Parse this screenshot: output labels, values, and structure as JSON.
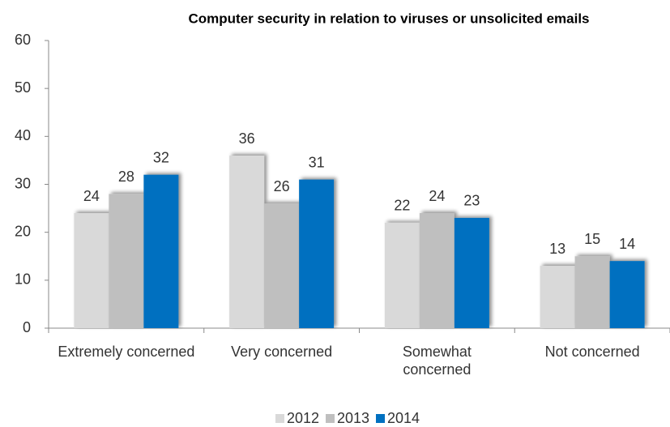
{
  "chart_data": {
    "type": "bar",
    "title": "Computer security in relation to viruses or unsolicited emails",
    "categories": [
      "Extremely concerned",
      "Very concerned",
      "Somewhat concerned",
      "Not concerned"
    ],
    "series": [
      {
        "name": "2012",
        "color": "#d9d9d9",
        "values": [
          24,
          36,
          22,
          13
        ]
      },
      {
        "name": "2013",
        "color": "#bfbfbf",
        "values": [
          28,
          26,
          24,
          15
        ]
      },
      {
        "name": "2014",
        "color": "#0070c0",
        "values": [
          32,
          31,
          23,
          14
        ]
      }
    ],
    "ylim": [
      0,
      60
    ],
    "yticks": [
      0,
      10,
      20,
      30,
      40,
      50,
      60
    ],
    "grid": false,
    "legend": "bottom"
  }
}
